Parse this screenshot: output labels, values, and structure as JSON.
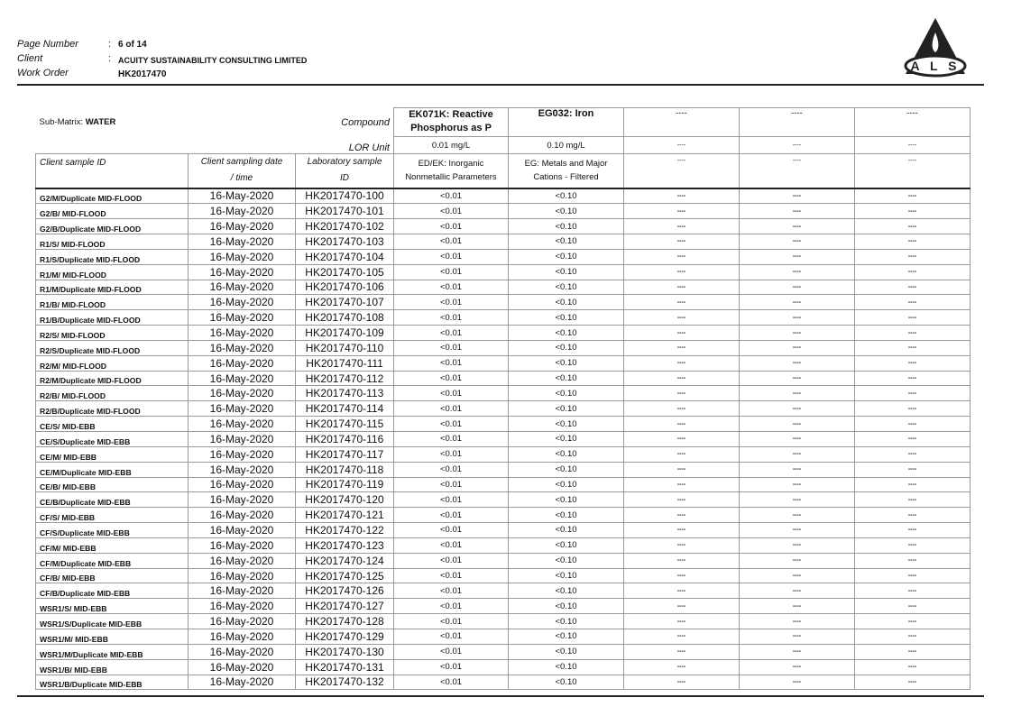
{
  "header": {
    "page_number_label": "Page Number",
    "page_number": "6 of 14",
    "client_label": "Client",
    "client": "ACUITY SUSTAINABILITY CONSULTING LIMITED",
    "work_order_label": "Work Order",
    "work_order": "HK2017470",
    "logo_text": "ALS"
  },
  "table": {
    "sub_matrix_label": "Sub-Matrix:",
    "sub_matrix": "WATER",
    "compound_label": "Compound",
    "lor_label": "LOR Unit",
    "col_headers": [
      "Client sample ID",
      "Client sampling date",
      "/ time",
      "Laboratory sample",
      "ID"
    ],
    "compounds": [
      "EK071K: Reactive Phosphorus as P",
      "EG032: Iron",
      "----",
      "----",
      "----"
    ],
    "lor": [
      "0.01 mg/L",
      "0.10 mg/L",
      "----",
      "----",
      "----"
    ],
    "methods": [
      "ED/EK: Inorganic Nonmetallic Parameters",
      "EG: Metals and Major Cations - Filtered",
      "----",
      "----",
      "----"
    ],
    "rows": [
      [
        "G2/M/Duplicate MID-FLOOD",
        "16-May-2020",
        "HK2017470-100",
        "<0.01",
        "<0.10",
        "----",
        "----",
        "----"
      ],
      [
        "G2/B/ MID-FLOOD",
        "16-May-2020",
        "HK2017470-101",
        "<0.01",
        "<0.10",
        "----",
        "----",
        "----"
      ],
      [
        "G2/B/Duplicate MID-FLOOD",
        "16-May-2020",
        "HK2017470-102",
        "<0.01",
        "<0.10",
        "----",
        "----",
        "----"
      ],
      [
        "R1/S/ MID-FLOOD",
        "16-May-2020",
        "HK2017470-103",
        "<0.01",
        "<0.10",
        "----",
        "----",
        "----"
      ],
      [
        "R1/S/Duplicate MID-FLOOD",
        "16-May-2020",
        "HK2017470-104",
        "<0.01",
        "<0.10",
        "----",
        "----",
        "----"
      ],
      [
        "R1/M/ MID-FLOOD",
        "16-May-2020",
        "HK2017470-105",
        "<0.01",
        "<0.10",
        "----",
        "----",
        "----"
      ],
      [
        "R1/M/Duplicate MID-FLOOD",
        "16-May-2020",
        "HK2017470-106",
        "<0.01",
        "<0.10",
        "----",
        "----",
        "----"
      ],
      [
        "R1/B/ MID-FLOOD",
        "16-May-2020",
        "HK2017470-107",
        "<0.01",
        "<0.10",
        "----",
        "----",
        "----"
      ],
      [
        "R1/B/Duplicate MID-FLOOD",
        "16-May-2020",
        "HK2017470-108",
        "<0.01",
        "<0.10",
        "----",
        "----",
        "----"
      ],
      [
        "R2/S/ MID-FLOOD",
        "16-May-2020",
        "HK2017470-109",
        "<0.01",
        "<0.10",
        "----",
        "----",
        "----"
      ],
      [
        "R2/S/Duplicate MID-FLOOD",
        "16-May-2020",
        "HK2017470-110",
        "<0.01",
        "<0.10",
        "----",
        "----",
        "----"
      ],
      [
        "R2/M/ MID-FLOOD",
        "16-May-2020",
        "HK2017470-111",
        "<0.01",
        "<0.10",
        "----",
        "----",
        "----"
      ],
      [
        "R2/M/Duplicate MID-FLOOD",
        "16-May-2020",
        "HK2017470-112",
        "<0.01",
        "<0.10",
        "----",
        "----",
        "----"
      ],
      [
        "R2/B/ MID-FLOOD",
        "16-May-2020",
        "HK2017470-113",
        "<0.01",
        "<0.10",
        "----",
        "----",
        "----"
      ],
      [
        "R2/B/Duplicate MID-FLOOD",
        "16-May-2020",
        "HK2017470-114",
        "<0.01",
        "<0.10",
        "----",
        "----",
        "----"
      ],
      [
        "CE/S/ MID-EBB",
        "16-May-2020",
        "HK2017470-115",
        "<0.01",
        "<0.10",
        "----",
        "----",
        "----"
      ],
      [
        "CE/S/Duplicate MID-EBB",
        "16-May-2020",
        "HK2017470-116",
        "<0.01",
        "<0.10",
        "----",
        "----",
        "----"
      ],
      [
        "CE/M/ MID-EBB",
        "16-May-2020",
        "HK2017470-117",
        "<0.01",
        "<0.10",
        "----",
        "----",
        "----"
      ],
      [
        "CE/M/Duplicate MID-EBB",
        "16-May-2020",
        "HK2017470-118",
        "<0.01",
        "<0.10",
        "----",
        "----",
        "----"
      ],
      [
        "CE/B/ MID-EBB",
        "16-May-2020",
        "HK2017470-119",
        "<0.01",
        "<0.10",
        "----",
        "----",
        "----"
      ],
      [
        "CE/B/Duplicate MID-EBB",
        "16-May-2020",
        "HK2017470-120",
        "<0.01",
        "<0.10",
        "----",
        "----",
        "----"
      ],
      [
        "CF/S/ MID-EBB",
        "16-May-2020",
        "HK2017470-121",
        "<0.01",
        "<0.10",
        "----",
        "----",
        "----"
      ],
      [
        "CF/S/Duplicate MID-EBB",
        "16-May-2020",
        "HK2017470-122",
        "<0.01",
        "<0.10",
        "----",
        "----",
        "----"
      ],
      [
        "CF/M/ MID-EBB",
        "16-May-2020",
        "HK2017470-123",
        "<0.01",
        "<0.10",
        "----",
        "----",
        "----"
      ],
      [
        "CF/M/Duplicate MID-EBB",
        "16-May-2020",
        "HK2017470-124",
        "<0.01",
        "<0.10",
        "----",
        "----",
        "----"
      ],
      [
        "CF/B/ MID-EBB",
        "16-May-2020",
        "HK2017470-125",
        "<0.01",
        "<0.10",
        "----",
        "----",
        "----"
      ],
      [
        "CF/B/Duplicate MID-EBB",
        "16-May-2020",
        "HK2017470-126",
        "<0.01",
        "<0.10",
        "----",
        "----",
        "----"
      ],
      [
        "WSR1/S/ MID-EBB",
        "16-May-2020",
        "HK2017470-127",
        "<0.01",
        "<0.10",
        "----",
        "----",
        "----"
      ],
      [
        "WSR1/S/Duplicate MID-EBB",
        "16-May-2020",
        "HK2017470-128",
        "<0.01",
        "<0.10",
        "----",
        "----",
        "----"
      ],
      [
        "WSR1/M/ MID-EBB",
        "16-May-2020",
        "HK2017470-129",
        "<0.01",
        "<0.10",
        "----",
        "----",
        "----"
      ],
      [
        "WSR1/M/Duplicate MID-EBB",
        "16-May-2020",
        "HK2017470-130",
        "<0.01",
        "<0.10",
        "----",
        "----",
        "----"
      ],
      [
        "WSR1/B/ MID-EBB",
        "16-May-2020",
        "HK2017470-131",
        "<0.01",
        "<0.10",
        "----",
        "----",
        "----"
      ],
      [
        "WSR1/B/Duplicate MID-EBB",
        "16-May-2020",
        "HK2017470-132",
        "<0.01",
        "<0.10",
        "----",
        "----",
        "----"
      ]
    ]
  }
}
